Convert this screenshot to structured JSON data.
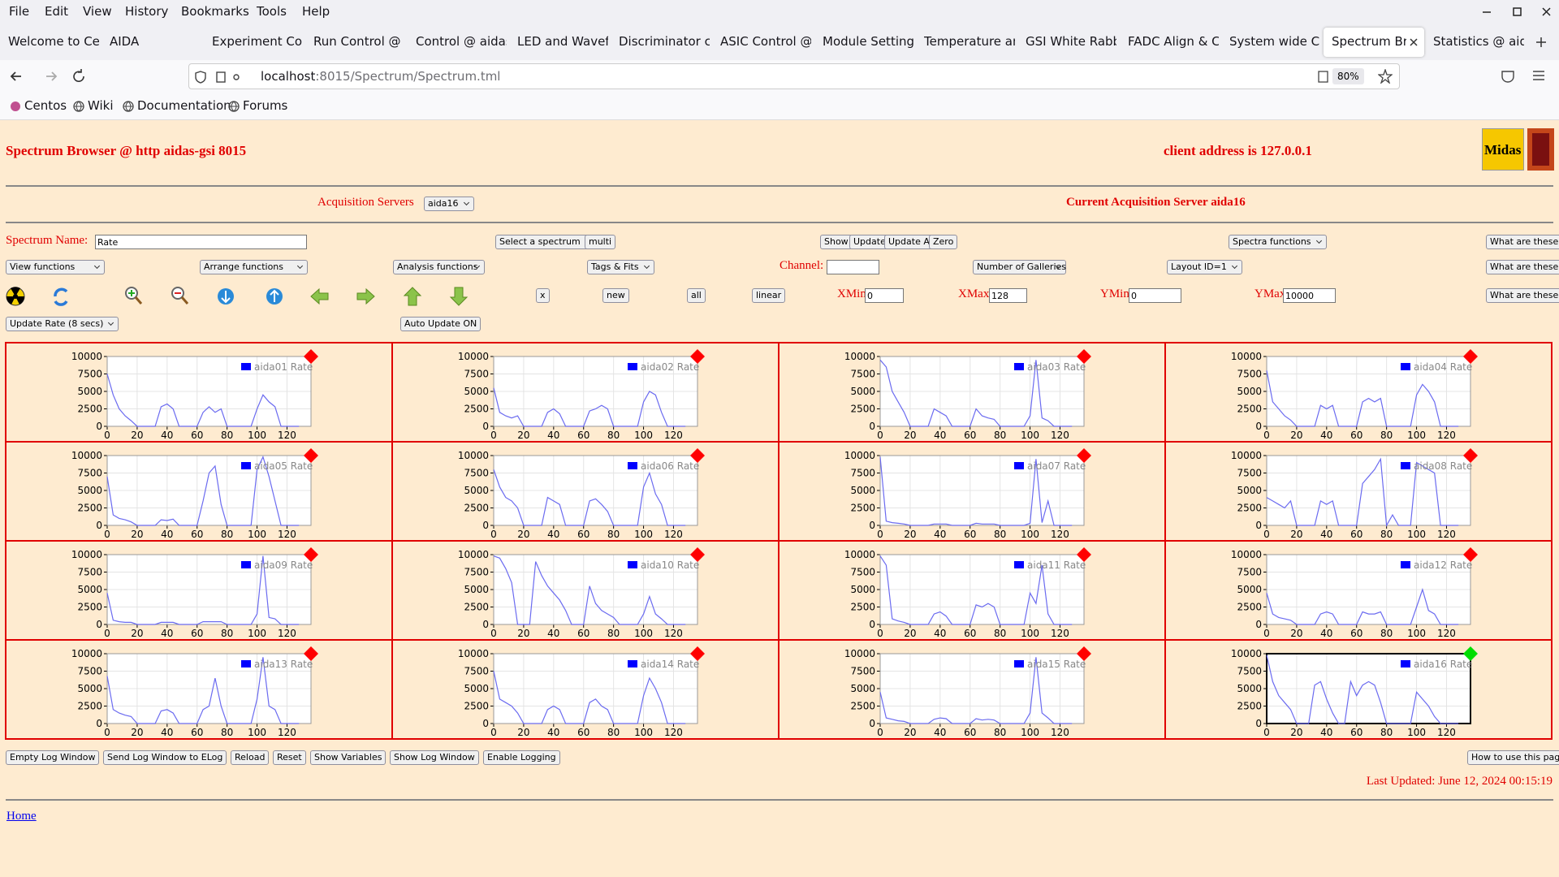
{
  "menu": [
    "File",
    "Edit",
    "View",
    "History",
    "Bookmarks",
    "Tools",
    "Help"
  ],
  "tabs": [
    "Welcome to Ce",
    "AIDA",
    "Experiment Con",
    "Run Control @ a",
    "Control @ aidas",
    "LED and Wavefo",
    "Discriminator co",
    "ASIC Control @",
    "Module Settings",
    "Temperature an",
    "GSI White Rabbi",
    "FADC Align & C",
    "System wide Ch",
    "Spectrum Bro",
    "Statistics @ aid"
  ],
  "active_tab": 13,
  "url": {
    "host": "localhost",
    "path": ":8015/Spectrum/Spectrum.tml",
    "zoom": "80%"
  },
  "bookmarks": [
    "Centos",
    "Wiki",
    "Documentation",
    "Forums"
  ],
  "header": {
    "title": "Spectrum Browser @ http aidas-gsi 8015",
    "client": "client address is 127.0.0.1",
    "logo_text": "Midas"
  },
  "servers": {
    "label": "Acquisition Servers",
    "selected": "aida16",
    "current": "Current Acquisition Server aida16"
  },
  "controls": {
    "spectrum_label": "Spectrum Name:",
    "spectrum_value": "Rate",
    "select_spectrum": "Select a spectrum",
    "multi": "multi",
    "show": "Show",
    "update": "Update",
    "update_all": "Update All",
    "zero": "Zero",
    "spectra_functions": "Spectra functions",
    "help": "What are these?",
    "view_functions": "View functions",
    "arrange_functions": "Arrange functions",
    "analysis_functions": "Analysis functions",
    "tags_fits": "Tags & Fits",
    "channel_label": "Channel:",
    "galleries": "Number of Galleries",
    "layout": "Layout ID=1",
    "x": "x",
    "new": "new",
    "all": "all",
    "linear": "linear",
    "xmin_label": "XMin",
    "xmin": 0,
    "xmax_label": "XMax",
    "xmax": 128,
    "ymin_label": "YMin",
    "ymin": 0,
    "ymax_label": "YMax",
    "ymax": 10000,
    "update_rate": "Update Rate (8 secs)",
    "auto_update": "Auto Update ON"
  },
  "gallery": {
    "xlim": [
      0,
      136
    ],
    "ylim": [
      0,
      10000
    ],
    "xticks": [
      0,
      20,
      40,
      60,
      80,
      100,
      120
    ],
    "yticks": [
      0,
      2500,
      5000,
      7500,
      10000
    ],
    "grid": true,
    "line_color": "#6b6bf0",
    "legend_color": "#0000ff",
    "selected": 15,
    "x": [
      0,
      4,
      8,
      12,
      16,
      20,
      24,
      28,
      32,
      36,
      40,
      44,
      48,
      52,
      56,
      60,
      64,
      68,
      72,
      76,
      80,
      84,
      88,
      92,
      96,
      100,
      104,
      108,
      112,
      116,
      120,
      124,
      128
    ],
    "panels": [
      {
        "name": "aida01 Rate",
        "marker": "#ff0000",
        "values": [
          7500,
          4500,
          2500,
          1500,
          800,
          0,
          0,
          0,
          0,
          2800,
          3200,
          2500,
          0,
          0,
          0,
          0,
          2000,
          2800,
          2000,
          2500,
          0,
          0,
          0,
          0,
          0,
          2500,
          4500,
          3500,
          2800,
          0,
          0,
          0,
          0
        ]
      },
      {
        "name": "aida02 Rate",
        "marker": "#ff0000",
        "values": [
          5500,
          2000,
          1500,
          1200,
          1500,
          0,
          0,
          0,
          0,
          2000,
          2500,
          1800,
          0,
          0,
          0,
          0,
          2200,
          2500,
          3000,
          2500,
          0,
          0,
          0,
          0,
          0,
          3500,
          5000,
          4500,
          2000,
          0,
          0,
          0,
          0
        ]
      },
      {
        "name": "aida03 Rate",
        "marker": "#ff0000",
        "values": [
          9500,
          8500,
          5000,
          3500,
          2000,
          0,
          0,
          0,
          0,
          2500,
          2000,
          1500,
          0,
          0,
          0,
          0,
          2500,
          1500,
          1200,
          1000,
          0,
          0,
          0,
          0,
          0,
          1500,
          9500,
          1200,
          800,
          0,
          0,
          0,
          0
        ]
      },
      {
        "name": "aida04 Rate",
        "marker": "#ff0000",
        "values": [
          8000,
          3500,
          2500,
          1500,
          900,
          0,
          0,
          0,
          0,
          3000,
          2500,
          3000,
          0,
          0,
          0,
          0,
          3500,
          4000,
          3500,
          4000,
          0,
          0,
          0,
          0,
          0,
          4500,
          6000,
          5000,
          3500,
          0,
          0,
          0,
          0
        ]
      },
      {
        "name": "aida05 Rate",
        "marker": "#ff0000",
        "values": [
          7000,
          1500,
          1000,
          800,
          500,
          0,
          0,
          0,
          0,
          800,
          700,
          900,
          0,
          0,
          0,
          0,
          3500,
          7500,
          8500,
          3000,
          0,
          0,
          0,
          0,
          0,
          8000,
          9800,
          7000,
          3500,
          0,
          0,
          0,
          0
        ]
      },
      {
        "name": "aida06 Rate",
        "marker": "#ff0000",
        "values": [
          8000,
          5500,
          4000,
          3500,
          2500,
          0,
          0,
          0,
          0,
          4000,
          3500,
          3000,
          0,
          0,
          0,
          0,
          3500,
          3800,
          3000,
          2000,
          0,
          0,
          0,
          0,
          0,
          5500,
          7500,
          4500,
          3000,
          0,
          0,
          0,
          0
        ]
      },
      {
        "name": "aida07 Rate",
        "marker": "#ff0000",
        "values": [
          9800,
          600,
          400,
          300,
          200,
          0,
          0,
          0,
          0,
          200,
          200,
          200,
          0,
          0,
          0,
          0,
          300,
          200,
          200,
          200,
          0,
          0,
          0,
          0,
          0,
          300,
          9500,
          400,
          3500,
          0,
          0,
          0,
          0
        ]
      },
      {
        "name": "aida08 Rate",
        "marker": "#ff0000",
        "values": [
          4000,
          3500,
          3000,
          2500,
          3500,
          0,
          0,
          0,
          0,
          3500,
          3000,
          3500,
          0,
          0,
          0,
          0,
          6000,
          7000,
          8000,
          9500,
          0,
          1500,
          0,
          0,
          0,
          9000,
          8500,
          8000,
          7500,
          0,
          0,
          0,
          0
        ]
      },
      {
        "name": "aida09 Rate",
        "marker": "#ff0000",
        "values": [
          4500,
          600,
          400,
          300,
          300,
          0,
          0,
          0,
          0,
          300,
          300,
          300,
          0,
          0,
          0,
          0,
          400,
          400,
          400,
          400,
          0,
          0,
          0,
          0,
          0,
          1500,
          9800,
          1000,
          800,
          0,
          0,
          0,
          0
        ]
      },
      {
        "name": "aida10 Rate",
        "marker": "#ff0000",
        "values": [
          9800,
          9500,
          8000,
          6000,
          0,
          0,
          0,
          9000,
          7000,
          5500,
          4500,
          3500,
          2000,
          0,
          0,
          0,
          5500,
          3000,
          2000,
          1500,
          1000,
          0,
          0,
          0,
          0,
          1500,
          4000,
          1500,
          800,
          0,
          0,
          0,
          0
        ]
      },
      {
        "name": "aida11 Rate",
        "marker": "#ff0000",
        "values": [
          9800,
          8500,
          800,
          500,
          300,
          0,
          0,
          0,
          0,
          1500,
          1800,
          1200,
          0,
          0,
          0,
          0,
          2800,
          2500,
          3000,
          2500,
          0,
          0,
          0,
          0,
          0,
          4500,
          3000,
          8500,
          1500,
          0,
          0,
          0,
          0
        ]
      },
      {
        "name": "aida12 Rate",
        "marker": "#ff0000",
        "values": [
          4500,
          1500,
          1000,
          800,
          600,
          0,
          0,
          0,
          0,
          1500,
          1800,
          1500,
          0,
          0,
          0,
          0,
          1800,
          1500,
          1500,
          1800,
          0,
          0,
          0,
          0,
          0,
          2500,
          5000,
          2000,
          1500,
          0,
          0,
          0,
          0
        ]
      },
      {
        "name": "aida13 Rate",
        "marker": "#ff0000",
        "values": [
          6800,
          2000,
          1500,
          1200,
          1000,
          0,
          0,
          0,
          0,
          1800,
          2000,
          1500,
          0,
          0,
          0,
          0,
          2000,
          2500,
          6500,
          2500,
          0,
          0,
          0,
          0,
          0,
          3500,
          9500,
          2500,
          2000,
          0,
          0,
          0,
          0
        ]
      },
      {
        "name": "aida14 Rate",
        "marker": "#ff0000",
        "values": [
          7500,
          3500,
          3000,
          2500,
          1500,
          0,
          0,
          0,
          0,
          2000,
          2500,
          2000,
          0,
          0,
          0,
          0,
          3000,
          3500,
          2500,
          2000,
          0,
          0,
          0,
          0,
          0,
          4000,
          6500,
          5000,
          3000,
          0,
          0,
          0,
          0
        ]
      },
      {
        "name": "aida15 Rate",
        "marker": "#ff0000",
        "values": [
          4500,
          800,
          600,
          400,
          300,
          0,
          0,
          0,
          0,
          600,
          800,
          700,
          0,
          0,
          0,
          0,
          700,
          500,
          600,
          500,
          0,
          0,
          0,
          0,
          0,
          1500,
          9500,
          1500,
          800,
          0,
          0,
          0,
          0
        ]
      },
      {
        "name": "aida16 Rate",
        "marker": "#00dd00",
        "values": [
          9800,
          6000,
          4000,
          3000,
          2000,
          0,
          0,
          0,
          5500,
          6000,
          3500,
          1500,
          0,
          0,
          6000,
          4000,
          5500,
          6000,
          5500,
          3000,
          0,
          0,
          0,
          0,
          0,
          4500,
          3500,
          2500,
          1000,
          0,
          0,
          0,
          0
        ]
      }
    ]
  },
  "footer": {
    "buttons": [
      "Empty Log Window",
      "Send Log Window to ELog",
      "Reload",
      "Reset",
      "Show Variables",
      "Show Log Window",
      "Enable Logging"
    ],
    "how_to": "How to use this page",
    "last_updated": "Last Updated: June 12, 2024 00:15:19",
    "home": "Home"
  }
}
